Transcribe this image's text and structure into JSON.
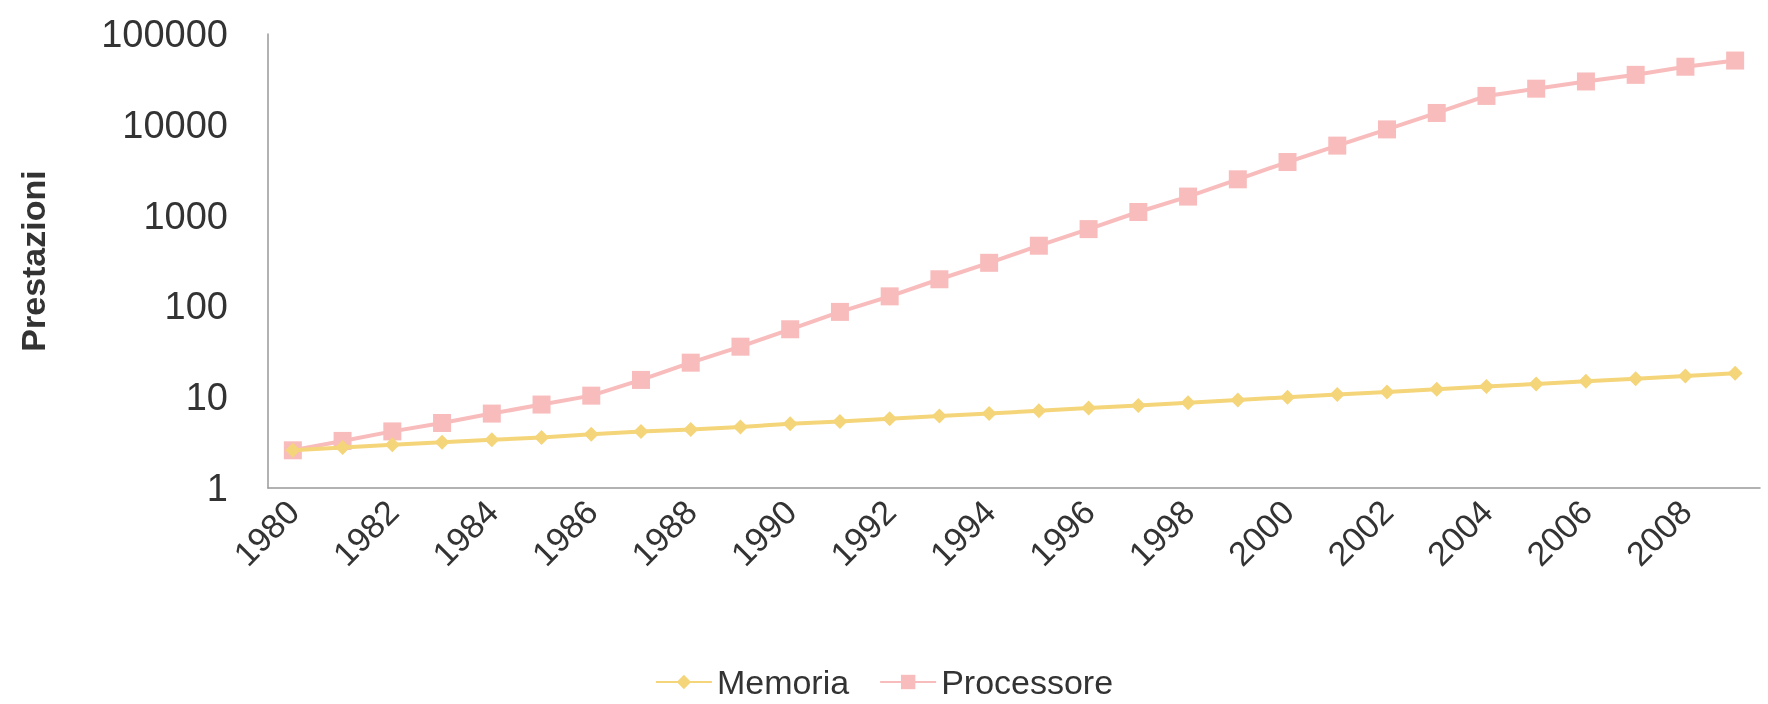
{
  "chart_data": {
    "type": "line",
    "ylabel": "Prestazioni",
    "log": true,
    "ylim": [
      1,
      100000
    ],
    "yticks": [
      1,
      10,
      100,
      1000,
      10000,
      100000
    ],
    "grid": false,
    "legend": "bottom",
    "categories": [
      "1980",
      null,
      "1982",
      null,
      "1984",
      null,
      "1986",
      null,
      "1988",
      null,
      "1990",
      null,
      "1992",
      null,
      "1994",
      null,
      "1996",
      null,
      "1998",
      null,
      "2000",
      null,
      "2002",
      null,
      "2004",
      null,
      "2006",
      null,
      "2008",
      null
    ],
    "series": [
      {
        "name": "Memoria",
        "color": "#f5d57a",
        "marker": "diamond",
        "values": [
          2.6,
          2.8,
          3.0,
          3.2,
          3.4,
          3.6,
          3.9,
          4.2,
          4.4,
          4.7,
          5.1,
          5.4,
          5.8,
          6.2,
          6.6,
          7.1,
          7.6,
          8.1,
          8.7,
          9.3,
          10,
          10.7,
          11.4,
          12.2,
          13.1,
          14,
          15,
          16,
          17.1,
          18.3
        ]
      },
      {
        "name": "Processore",
        "color": "#f8bcbc",
        "marker": "square",
        "values": [
          2.6,
          3.3,
          4.2,
          5.2,
          6.6,
          8.3,
          10.4,
          15.5,
          24,
          36,
          56,
          87,
          129,
          199,
          302,
          466,
          710,
          1096,
          1620,
          2510,
          3890,
          5900,
          8900,
          13500,
          20800,
          25000,
          30000,
          35500,
          43600,
          51000
        ]
      }
    ]
  }
}
